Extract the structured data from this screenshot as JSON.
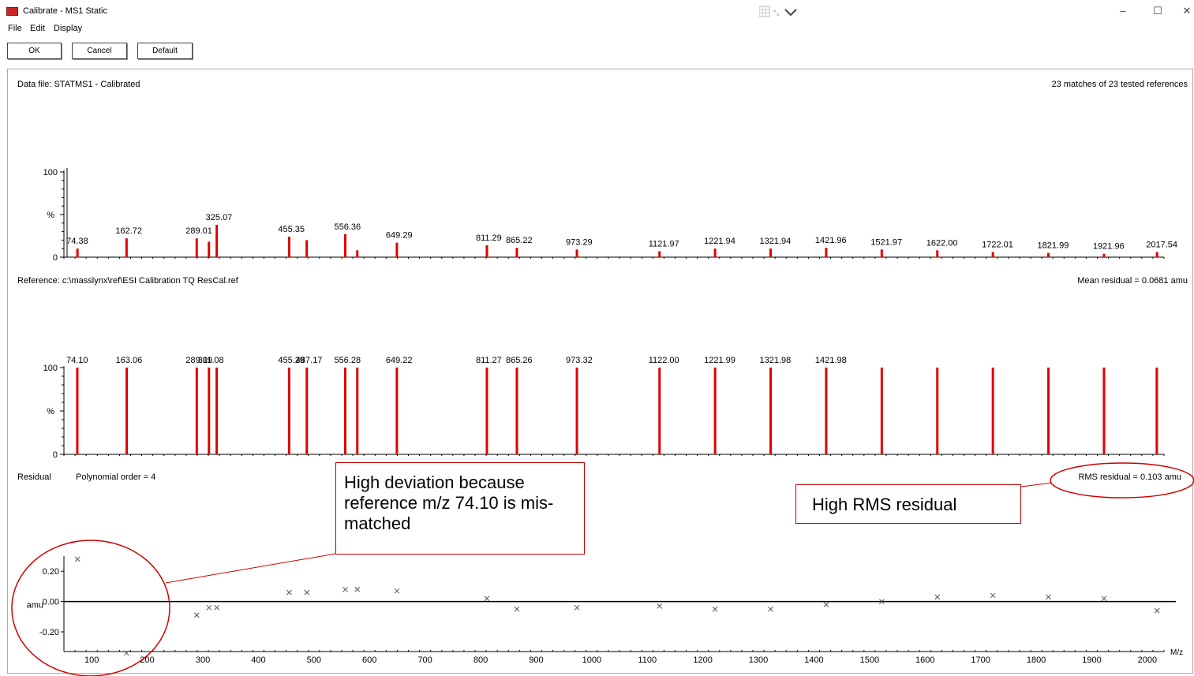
{
  "window": {
    "title": "Calibrate - MS1 Static",
    "controls": {
      "minimize": "–",
      "maximize": "☐",
      "close": "✕"
    }
  },
  "menu": [
    "File",
    "Edit",
    "Display"
  ],
  "toolbar": {
    "ok": "OK",
    "cancel": "Cancel",
    "default": "Default"
  },
  "data_panel": {
    "file_label": "Data file: STATMS1 - Calibrated",
    "matches": "23 matches of 23 tested references"
  },
  "reference_panel": {
    "reference_label": "Reference: c:\\masslynx\\ref\\ESI Calibration TQ ResCal.ref",
    "mean_residual": "Mean residual = 0.0681 amu"
  },
  "residual_panel": {
    "label": "Residual",
    "polynomial": "Polynomial order = 4",
    "rms": "RMS residual = 0.103 amu"
  },
  "annotations": {
    "deviation_note": "High deviation because reference m/z 74.10 is mis-matched",
    "rms_note": "High RMS residual",
    "accent_color": "#d00000"
  },
  "chart_data": [
    {
      "type": "bar",
      "name": "calibration-spectrum",
      "ylabel": "%",
      "yticks": [
        "0",
        "100"
      ],
      "xlim": [
        50,
        2030
      ],
      "ylim": [
        0,
        100
      ],
      "color": "#e00000",
      "peaks": [
        {
          "x": 74.38,
          "y": 10,
          "label": "74.38"
        },
        {
          "x": 162.72,
          "y": 22,
          "label": "162.72"
        },
        {
          "x": 289.01,
          "y": 22,
          "label": "289.01"
        },
        {
          "x": 311.0,
          "y": 18,
          "label": ""
        },
        {
          "x": 325.07,
          "y": 38,
          "label": "325.07"
        },
        {
          "x": 455.35,
          "y": 24,
          "label": "455.35"
        },
        {
          "x": 487.0,
          "y": 20,
          "label": ""
        },
        {
          "x": 556.36,
          "y": 27,
          "label": "556.36"
        },
        {
          "x": 578.0,
          "y": 8,
          "label": ""
        },
        {
          "x": 649.29,
          "y": 17,
          "label": "649.29"
        },
        {
          "x": 811.29,
          "y": 14,
          "label": "811.29"
        },
        {
          "x": 865.22,
          "y": 11,
          "label": "865.22"
        },
        {
          "x": 973.29,
          "y": 9,
          "label": "973.29"
        },
        {
          "x": 1121.97,
          "y": 7,
          "label": "1121.97"
        },
        {
          "x": 1221.94,
          "y": 10,
          "label": "1221.94"
        },
        {
          "x": 1321.94,
          "y": 10,
          "label": "1321.94"
        },
        {
          "x": 1421.96,
          "y": 11,
          "label": "1421.96"
        },
        {
          "x": 1521.97,
          "y": 9,
          "label": "1521.97"
        },
        {
          "x": 1622.0,
          "y": 8,
          "label": "1622.00"
        },
        {
          "x": 1722.01,
          "y": 6,
          "label": "1722.01"
        },
        {
          "x": 1821.99,
          "y": 5,
          "label": "1821.99"
        },
        {
          "x": 1921.96,
          "y": 4,
          "label": "1921.96"
        },
        {
          "x": 2017.54,
          "y": 6,
          "label": "2017.54"
        }
      ]
    },
    {
      "type": "bar",
      "name": "reference-spectrum",
      "ylabel": "%",
      "yticks": [
        "0",
        "100"
      ],
      "xlim": [
        50,
        2030
      ],
      "ylim": [
        0,
        100
      ],
      "color": "#e00000",
      "peaks": [
        {
          "x": 74.1,
          "y": 100,
          "label": "74.10"
        },
        {
          "x": 163.06,
          "y": 100,
          "label": "163.06"
        },
        {
          "x": 289.09,
          "y": 100,
          "label": "289.09"
        },
        {
          "x": 311.08,
          "y": 100,
          "label": "311.08"
        },
        {
          "x": 325.0,
          "y": 100,
          "label": ""
        },
        {
          "x": 455.29,
          "y": 100,
          "label": "455.29"
        },
        {
          "x": 487.17,
          "y": 100,
          "label": "487.17"
        },
        {
          "x": 556.28,
          "y": 100,
          "label": "556.28"
        },
        {
          "x": 578.0,
          "y": 100,
          "label": ""
        },
        {
          "x": 649.22,
          "y": 100,
          "label": "649.22"
        },
        {
          "x": 811.27,
          "y": 100,
          "label": "811.27"
        },
        {
          "x": 865.26,
          "y": 100,
          "label": "865.26"
        },
        {
          "x": 973.32,
          "y": 100,
          "label": "973.32"
        },
        {
          "x": 1122.0,
          "y": 100,
          "label": "1122.00"
        },
        {
          "x": 1221.99,
          "y": 100,
          "label": "1221.99"
        },
        {
          "x": 1321.98,
          "y": 100,
          "label": "1321.98"
        },
        {
          "x": 1421.98,
          "y": 100,
          "label": "1421.98"
        },
        {
          "x": 1522.0,
          "y": 100,
          "label": ""
        },
        {
          "x": 1622.0,
          "y": 100,
          "label": ""
        },
        {
          "x": 1722.0,
          "y": 100,
          "label": ""
        },
        {
          "x": 1822.0,
          "y": 100,
          "label": ""
        },
        {
          "x": 1922.0,
          "y": 100,
          "label": ""
        },
        {
          "x": 2017.0,
          "y": 100,
          "label": ""
        }
      ]
    },
    {
      "type": "scatter",
      "name": "residual-plot",
      "xlabel": "M/z",
      "ylabel": "amu",
      "xticks": [
        "100",
        "200",
        "300",
        "400",
        "500",
        "600",
        "700",
        "800",
        "900",
        "1000",
        "1100",
        "1200",
        "1300",
        "1400",
        "1500",
        "1600",
        "1700",
        "1800",
        "1900",
        "2000"
      ],
      "yticks": [
        "0.20",
        "0.00",
        "-0.20"
      ],
      "xlim": [
        50,
        2030
      ],
      "ylim": [
        -0.33,
        0.3
      ],
      "marker": "x",
      "points": [
        {
          "x": 74.4,
          "y": 0.28
        },
        {
          "x": 162.7,
          "y": -0.34
        },
        {
          "x": 289.0,
          "y": -0.09
        },
        {
          "x": 311.0,
          "y": -0.04
        },
        {
          "x": 325.1,
          "y": -0.04
        },
        {
          "x": 455.4,
          "y": 0.06
        },
        {
          "x": 487.2,
          "y": 0.06
        },
        {
          "x": 556.4,
          "y": 0.08
        },
        {
          "x": 578.0,
          "y": 0.08
        },
        {
          "x": 649.3,
          "y": 0.07
        },
        {
          "x": 811.3,
          "y": 0.02
        },
        {
          "x": 865.2,
          "y": -0.05
        },
        {
          "x": 973.3,
          "y": -0.04
        },
        {
          "x": 1122.0,
          "y": -0.03
        },
        {
          "x": 1221.9,
          "y": -0.05
        },
        {
          "x": 1321.9,
          "y": -0.05
        },
        {
          "x": 1422.0,
          "y": -0.02
        },
        {
          "x": 1522.0,
          "y": 0.0
        },
        {
          "x": 1622.0,
          "y": 0.03
        },
        {
          "x": 1722.0,
          "y": 0.04
        },
        {
          "x": 1822.0,
          "y": 0.03
        },
        {
          "x": 1922.0,
          "y": 0.02
        },
        {
          "x": 2017.5,
          "y": -0.06
        }
      ]
    }
  ]
}
